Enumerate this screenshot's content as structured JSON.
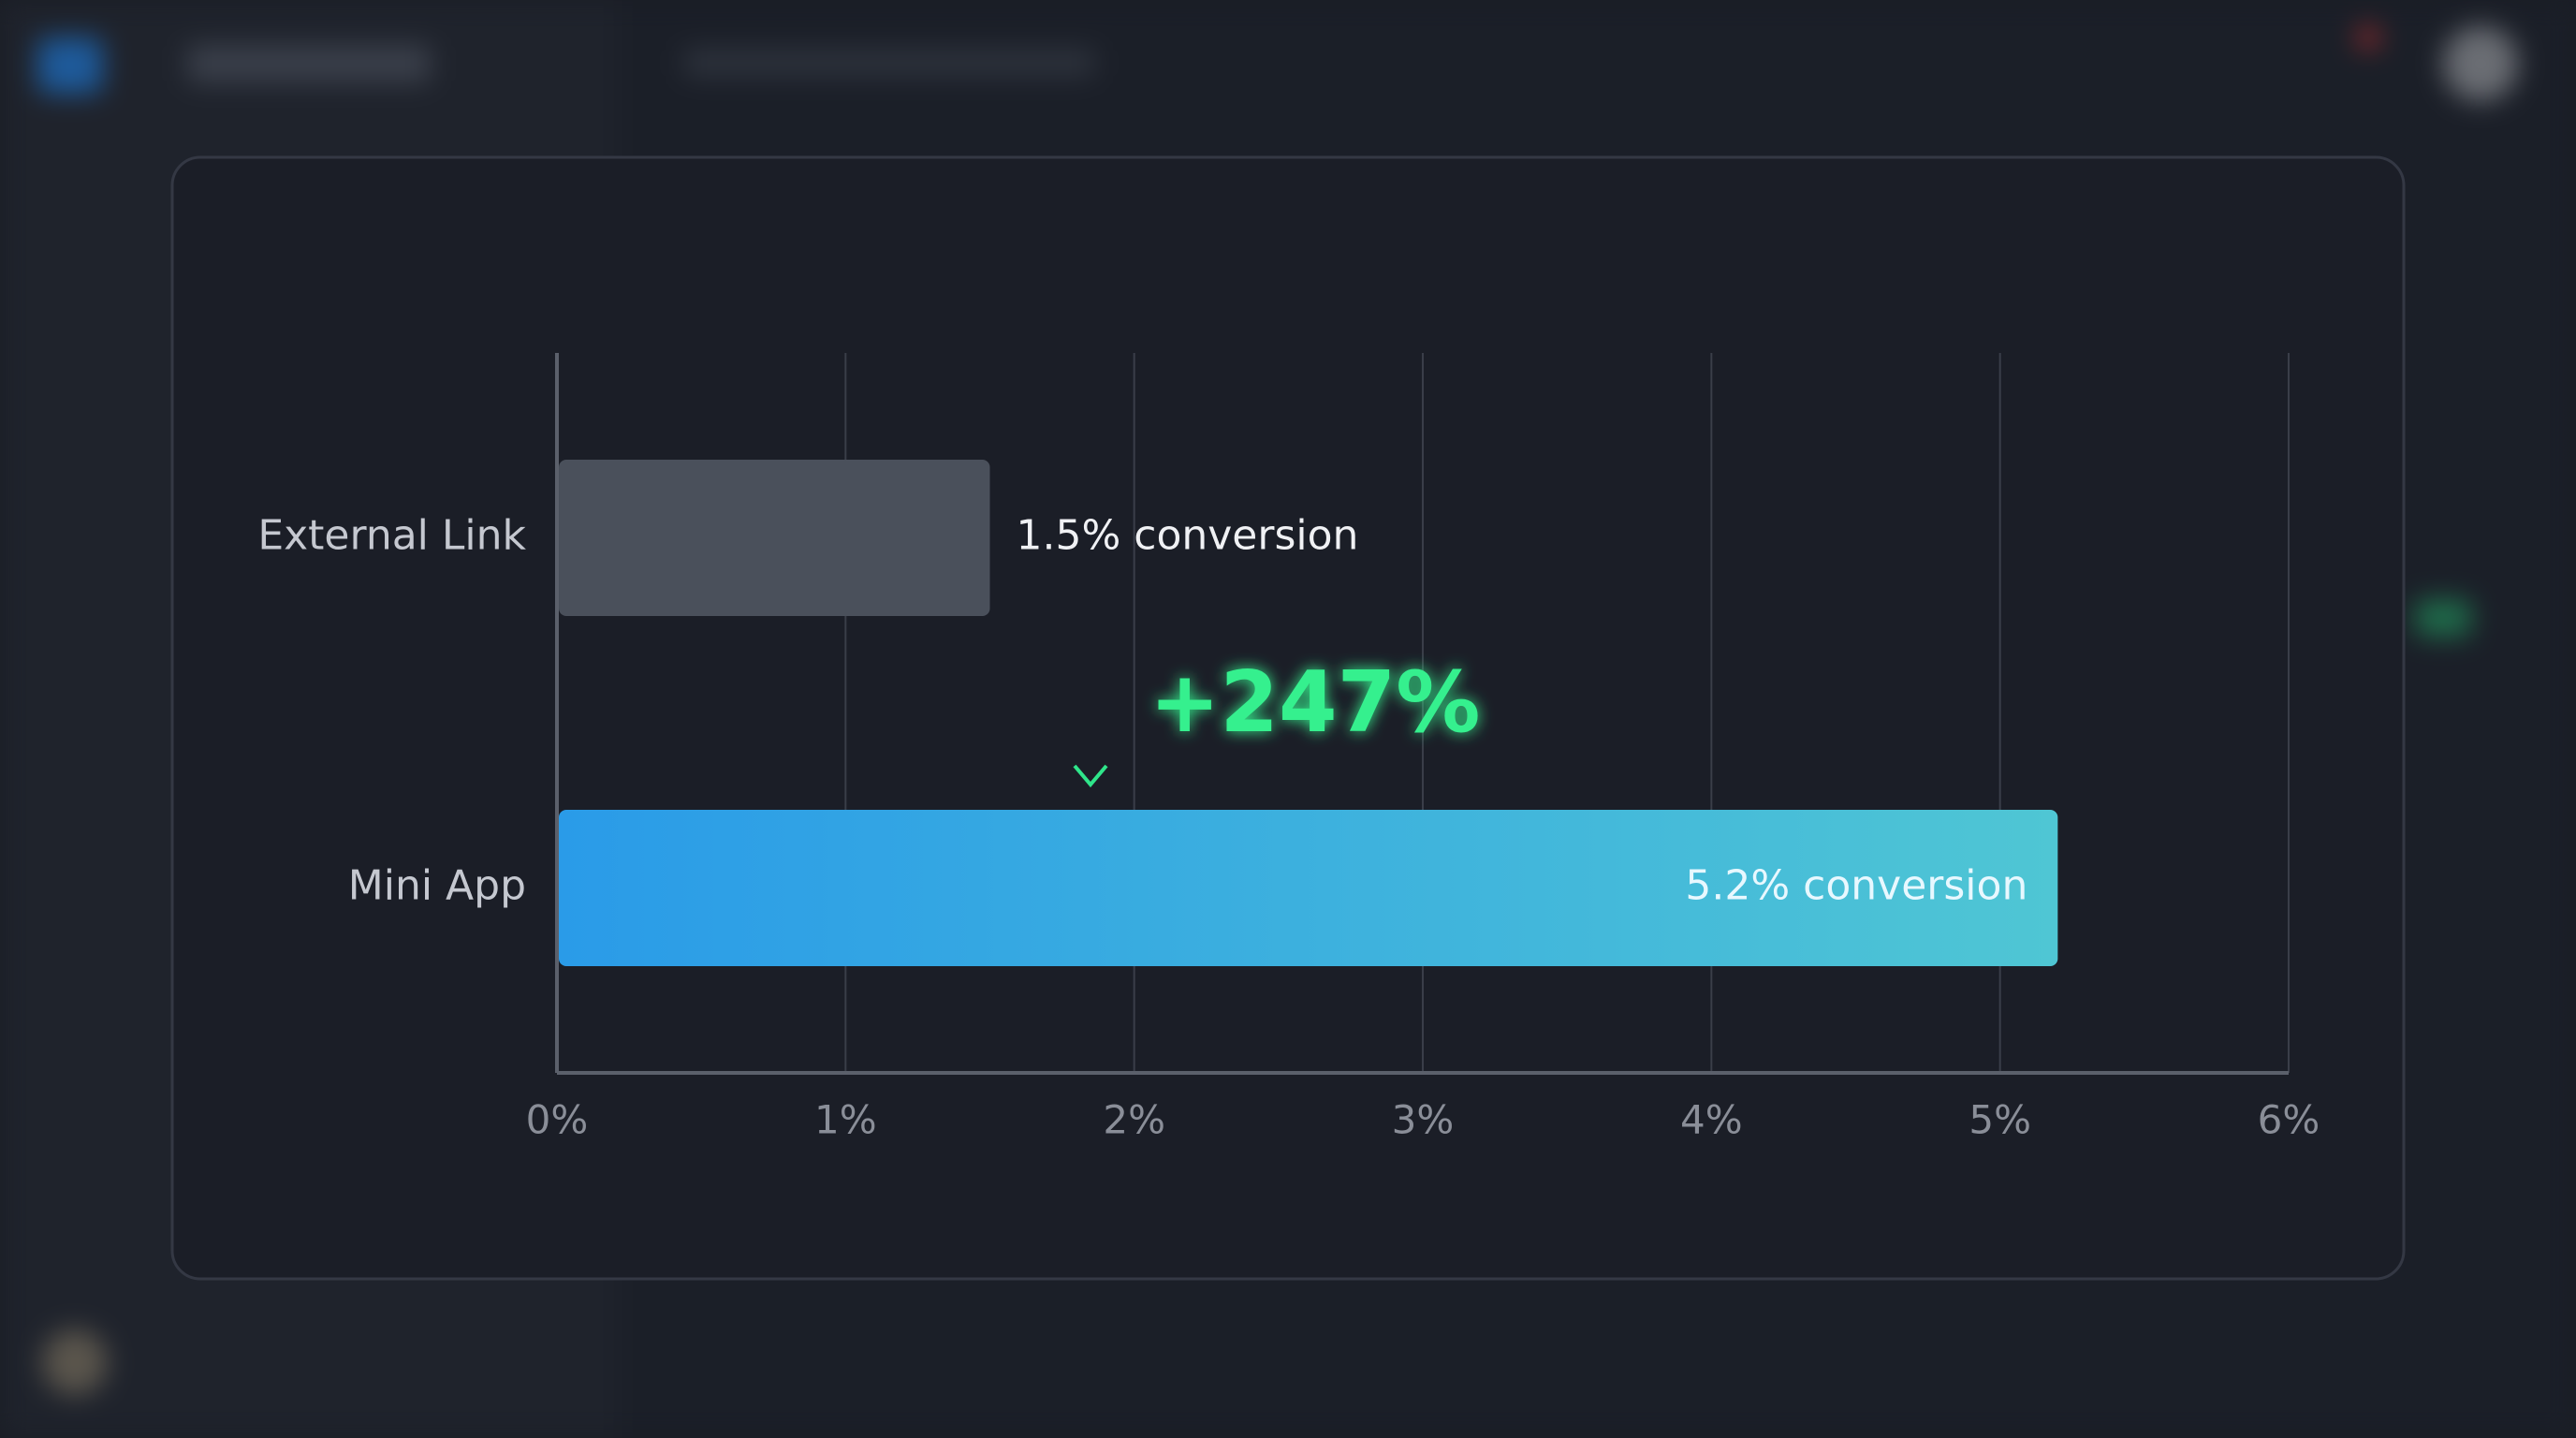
{
  "chart_data": {
    "type": "hbar",
    "categories": [
      "External Link",
      "Mini App"
    ],
    "values": [
      1.5,
      5.2
    ],
    "value_labels": [
      "1.5% conversion",
      "5.2% conversion"
    ],
    "colors": [
      "#4a505b",
      "#2a9be8"
    ],
    "xlim": [
      0,
      6
    ],
    "xticks": [
      {
        "value": 0,
        "label": "0%"
      },
      {
        "value": 1,
        "label": "1%"
      },
      {
        "value": 2,
        "label": "2%"
      },
      {
        "value": 3,
        "label": "3%"
      },
      {
        "value": 4,
        "label": "4%"
      },
      {
        "value": 5,
        "label": "5%"
      },
      {
        "value": 6,
        "label": "6%"
      }
    ],
    "grid": true,
    "annotation": "+247%"
  }
}
